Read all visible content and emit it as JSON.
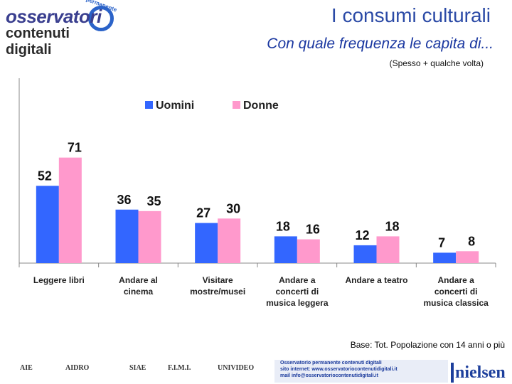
{
  "header": {
    "logo_line1": "osservatori",
    "logo_line2": "contenuti digitali",
    "logo_small": "permanente",
    "title": "I consumi culturali",
    "subtitle": "Con quale frequenza le capita di...",
    "note": "(Spesso + qualche volta)"
  },
  "chart_data": {
    "type": "bar",
    "title": "",
    "categories": [
      [
        "Leggere libri"
      ],
      [
        "Andare al",
        "cinema"
      ],
      [
        "Visitare",
        "mostre/musei"
      ],
      [
        "Andare a",
        "concerti di",
        "musica leggera"
      ],
      [
        "Andare a teatro"
      ],
      [
        "Andare a",
        "concerti di",
        "musica classica"
      ]
    ],
    "series": [
      {
        "name": "Uomini",
        "color": "#3366ff",
        "values": [
          52,
          36,
          27,
          18,
          12,
          7
        ]
      },
      {
        "name": "Donne",
        "color": "#ff99cc",
        "values": [
          71,
          35,
          30,
          16,
          18,
          8
        ]
      }
    ],
    "ylim": [
      0,
      80
    ],
    "legend": "top-center",
    "grid": false
  },
  "footer": {
    "base_note": "Base: Tot. Popolazione con 14 anni o più",
    "logos": [
      "AIE",
      "AIDRO",
      "SIAE",
      "F.I.M.I.",
      "UNIVIDEO"
    ],
    "obs_lines": [
      "Osservatorio permanente contenuti digitali",
      "sito internet: www.osservatoriocontenutidigitali.it",
      "mail info@osservatoriocontenutidigitali.it"
    ],
    "nielsen": "nielsen"
  }
}
